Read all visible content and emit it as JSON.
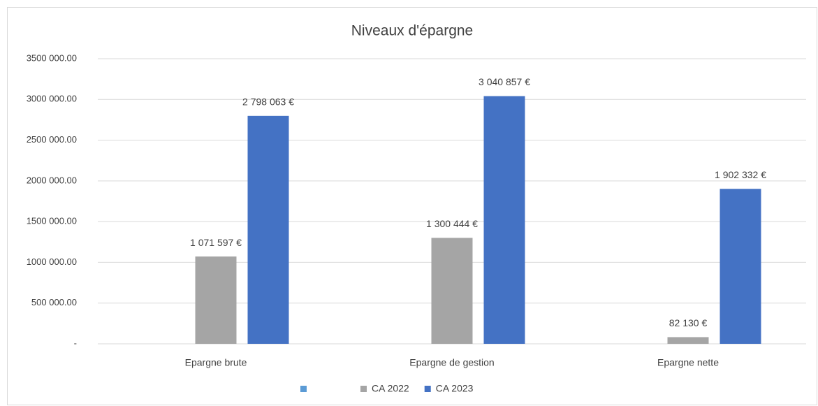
{
  "chart_data": {
    "type": "bar",
    "title": "Niveaux d'épargne",
    "categories": [
      "Epargne brute",
      "Epargne de gestion",
      "Epargne nette"
    ],
    "series": [
      {
        "name": null,
        "color": "#5b9bd5",
        "values": [
          null,
          null,
          null
        ]
      },
      {
        "name": "CA 2022",
        "color": "#a5a5a5",
        "values": [
          1071597,
          1300444,
          82130
        ],
        "value_labels": [
          "1 071 597 €",
          "1 300 444 €",
          "82 130 €"
        ]
      },
      {
        "name": "CA 2023",
        "color": "#4472c4",
        "values": [
          2798063,
          3040857,
          1902332
        ],
        "value_labels": [
          "2 798 063 €",
          "3 040 857 €",
          "1 902 332 €"
        ]
      }
    ],
    "ylim": [
      0,
      3500000
    ],
    "yticks": [
      {
        "value": 0,
        "label": "-"
      },
      {
        "value": 500000,
        "label": "500 000.00"
      },
      {
        "value": 1000000,
        "label": "1000 000.00"
      },
      {
        "value": 1500000,
        "label": "1500 000.00"
      },
      {
        "value": 2000000,
        "label": "2000 000.00"
      },
      {
        "value": 2500000,
        "label": "2500 000.00"
      },
      {
        "value": 3000000,
        "label": "3000 000.00"
      },
      {
        "value": 3500000,
        "label": "3500 000.00"
      }
    ],
    "grid": true,
    "legend": "bottom"
  }
}
